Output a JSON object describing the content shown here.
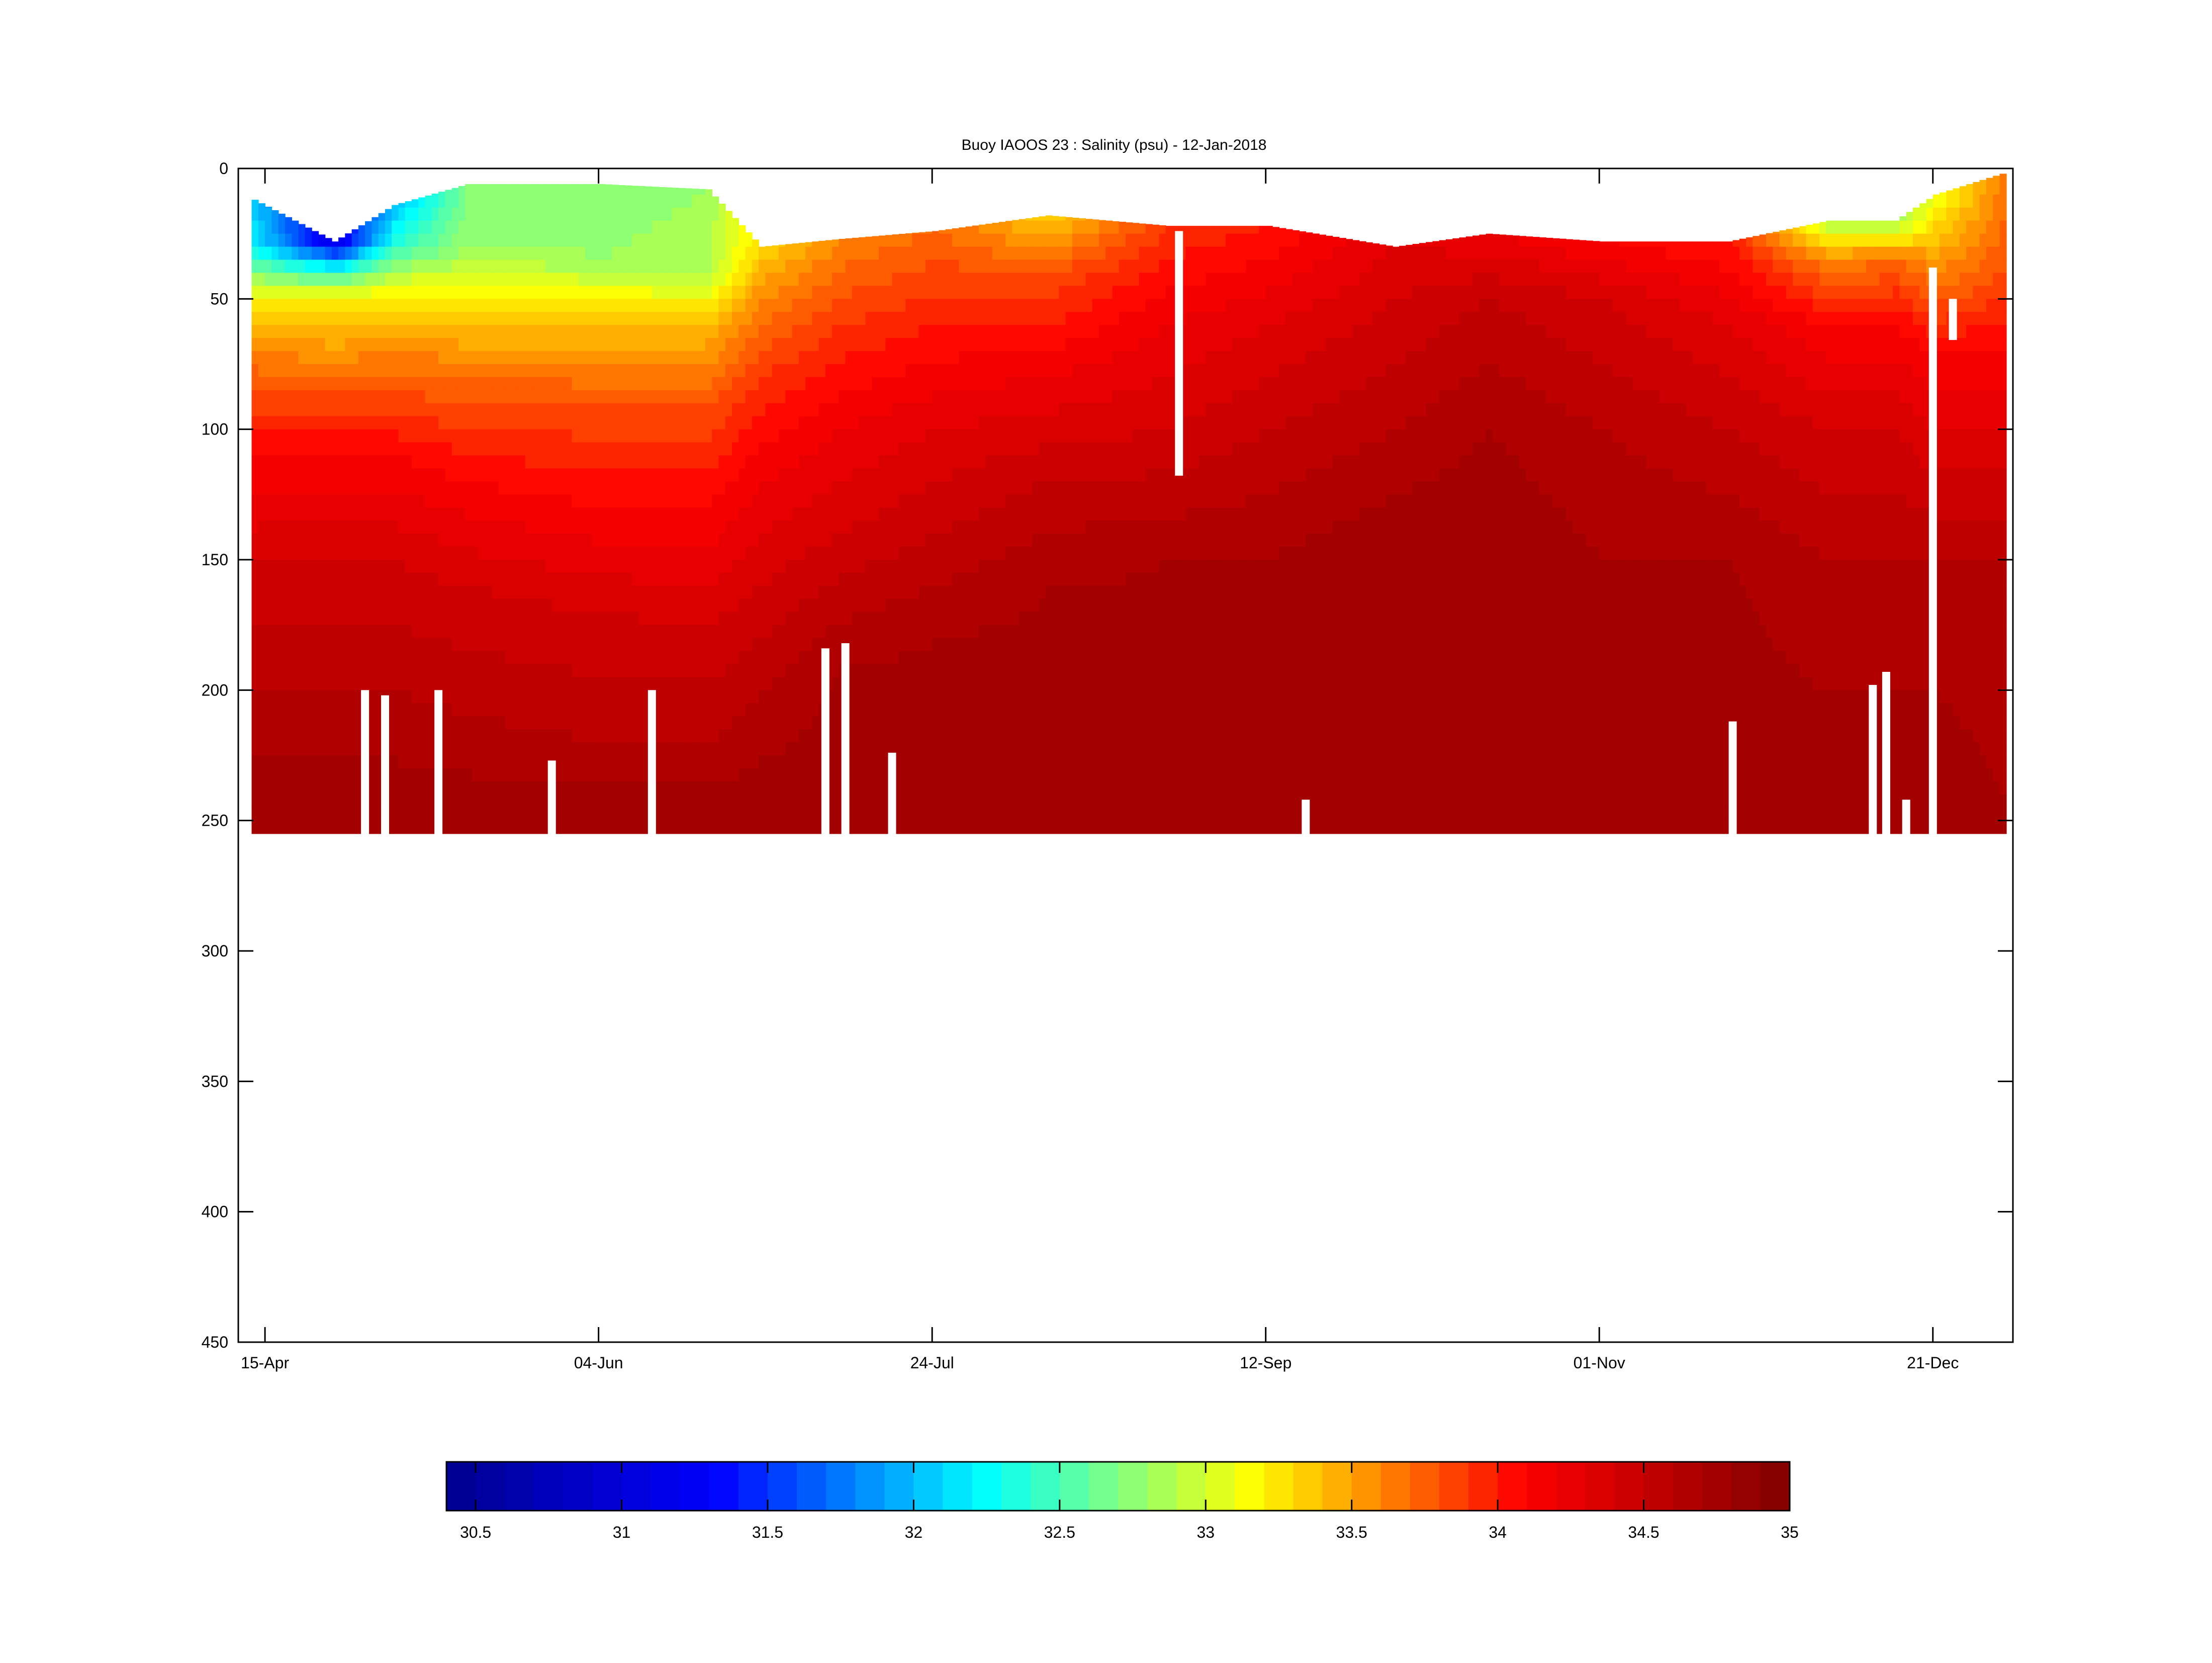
{
  "chart_data": {
    "type": "heatmap",
    "title": "Buoy IAOOS 23 : Salinity (psu) - 12-Jan-2018",
    "xlabel": "",
    "ylabel": "",
    "x_domain": [
      "2017-04-11",
      "2018-01-02"
    ],
    "x_ticks": [
      {
        "date": "2017-04-15",
        "label": "15-Apr"
      },
      {
        "date": "2017-06-04",
        "label": "04-Jun"
      },
      {
        "date": "2017-07-24",
        "label": "24-Jul"
      },
      {
        "date": "2017-09-12",
        "label": "12-Sep"
      },
      {
        "date": "2017-11-01",
        "label": "01-Nov"
      },
      {
        "date": "2017-12-21",
        "label": "21-Dec"
      }
    ],
    "ylim": [
      0,
      450
    ],
    "y_reversed": true,
    "y_ticks": [
      0,
      50,
      100,
      150,
      200,
      250,
      300,
      350,
      400,
      450
    ],
    "grid": false,
    "colorbar": {
      "orientation": "horizontal",
      "placement": "bottom",
      "range": [
        30.4,
        35
      ],
      "ticks": [
        30.5,
        31,
        31.5,
        32,
        32.5,
        33,
        33.5,
        34,
        34.5,
        35
      ],
      "colormap": "jet",
      "colormap_stops": [
        "#00008f",
        "#0000ff",
        "#00ffff",
        "#ffff00",
        "#ff0000",
        "#800000"
      ],
      "levels": 46
    },
    "profile_max_depth": 255,
    "salinity_profiles": [
      {
        "date": "2017-04-13",
        "top_depth": 12,
        "depth_salinity": [
          [
            12,
            32.0
          ],
          [
            30,
            32.2
          ],
          [
            50,
            33.2
          ],
          [
            70,
            33.6
          ],
          [
            100,
            34.0
          ],
          [
            150,
            34.4
          ],
          [
            200,
            34.6
          ],
          [
            255,
            34.8
          ]
        ]
      },
      {
        "date": "2017-04-25",
        "top_depth": 28,
        "depth_salinity": [
          [
            28,
            31.1
          ],
          [
            40,
            32.4
          ],
          [
            50,
            33.2
          ],
          [
            80,
            33.7
          ],
          [
            110,
            34.1
          ],
          [
            150,
            34.4
          ],
          [
            200,
            34.6
          ],
          [
            255,
            34.8
          ]
        ]
      },
      {
        "date": "2017-05-04",
        "top_depth": 14,
        "depth_salinity": [
          [
            14,
            32.0
          ],
          [
            30,
            32.4
          ],
          [
            45,
            33.1
          ],
          [
            70,
            33.6
          ],
          [
            110,
            34.1
          ],
          [
            150,
            34.4
          ],
          [
            200,
            34.6
          ],
          [
            255,
            34.8
          ]
        ]
      },
      {
        "date": "2017-05-15",
        "top_depth": 6,
        "depth_salinity": [
          [
            6,
            32.7
          ],
          [
            30,
            32.8
          ],
          [
            50,
            33.2
          ],
          [
            80,
            33.7
          ],
          [
            120,
            34.1
          ],
          [
            160,
            34.4
          ],
          [
            210,
            34.6
          ],
          [
            255,
            34.8
          ]
        ]
      },
      {
        "date": "2017-06-04",
        "top_depth": 6,
        "depth_salinity": [
          [
            6,
            32.7
          ],
          [
            35,
            32.8
          ],
          [
            55,
            33.3
          ],
          [
            90,
            33.8
          ],
          [
            130,
            34.1
          ],
          [
            170,
            34.4
          ],
          [
            220,
            34.6
          ],
          [
            255,
            34.8
          ]
        ]
      },
      {
        "date": "2017-06-20",
        "top_depth": 8,
        "depth_salinity": [
          [
            8,
            32.8
          ],
          [
            40,
            32.9
          ],
          [
            60,
            33.4
          ],
          [
            90,
            33.8
          ],
          [
            130,
            34.1
          ],
          [
            175,
            34.4
          ],
          [
            220,
            34.6
          ],
          [
            255,
            34.8
          ]
        ]
      },
      {
        "date": "2017-06-28",
        "top_depth": 30,
        "depth_salinity": [
          [
            30,
            33.3
          ],
          [
            50,
            33.6
          ],
          [
            80,
            33.9
          ],
          [
            120,
            34.2
          ],
          [
            160,
            34.4
          ],
          [
            200,
            34.6
          ],
          [
            255,
            34.8
          ]
        ]
      },
      {
        "date": "2017-07-10",
        "top_depth": 27,
        "depth_salinity": [
          [
            27,
            33.6
          ],
          [
            60,
            33.9
          ],
          [
            100,
            34.2
          ],
          [
            140,
            34.4
          ],
          [
            190,
            34.7
          ],
          [
            255,
            34.8
          ]
        ]
      },
      {
        "date": "2017-07-24",
        "top_depth": 24,
        "depth_salinity": [
          [
            24,
            33.7
          ],
          [
            60,
            34.0
          ],
          [
            100,
            34.3
          ],
          [
            140,
            34.5
          ],
          [
            180,
            34.7
          ],
          [
            255,
            34.8
          ]
        ]
      },
      {
        "date": "2017-08-10",
        "top_depth": 18,
        "depth_salinity": [
          [
            18,
            33.3
          ],
          [
            40,
            33.8
          ],
          [
            80,
            34.2
          ],
          [
            120,
            34.5
          ],
          [
            160,
            34.7
          ],
          [
            255,
            34.8
          ]
        ]
      },
      {
        "date": "2017-08-28",
        "top_depth": 22,
        "depth_salinity": [
          [
            22,
            33.9
          ],
          [
            60,
            34.2
          ],
          [
            100,
            34.4
          ],
          [
            150,
            34.7
          ],
          [
            255,
            34.8
          ]
        ]
      },
      {
        "date": "2017-09-12",
        "top_depth": 22,
        "depth_salinity": [
          [
            22,
            34.0
          ],
          [
            60,
            34.3
          ],
          [
            100,
            34.5
          ],
          [
            150,
            34.7
          ],
          [
            255,
            34.8
          ]
        ]
      },
      {
        "date": "2017-10-01",
        "top_depth": 30,
        "depth_salinity": [
          [
            30,
            34.3
          ],
          [
            50,
            34.4
          ],
          [
            100,
            34.6
          ],
          [
            150,
            34.8
          ],
          [
            255,
            34.8
          ]
        ]
      },
      {
        "date": "2017-10-15",
        "top_depth": 25,
        "depth_salinity": [
          [
            25,
            34.2
          ],
          [
            50,
            34.5
          ],
          [
            100,
            34.7
          ],
          [
            150,
            34.8
          ],
          [
            255,
            34.8
          ]
        ]
      },
      {
        "date": "2017-11-01",
        "top_depth": 28,
        "depth_salinity": [
          [
            28,
            34.1
          ],
          [
            50,
            34.4
          ],
          [
            100,
            34.6
          ],
          [
            150,
            34.7
          ],
          [
            255,
            34.8
          ]
        ]
      },
      {
        "date": "2017-11-20",
        "top_depth": 28,
        "depth_salinity": [
          [
            28,
            34.0
          ],
          [
            60,
            34.3
          ],
          [
            100,
            34.5
          ],
          [
            150,
            34.7
          ],
          [
            255,
            34.8
          ]
        ]
      },
      {
        "date": "2017-12-05",
        "top_depth": 20,
        "depth_salinity": [
          [
            20,
            32.8
          ],
          [
            35,
            33.6
          ],
          [
            60,
            34.1
          ],
          [
            100,
            34.4
          ],
          [
            150,
            34.6
          ],
          [
            255,
            34.8
          ]
        ]
      },
      {
        "date": "2017-12-15",
        "top_depth": 20,
        "depth_salinity": [
          [
            20,
            32.8
          ],
          [
            35,
            33.7
          ],
          [
            60,
            34.1
          ],
          [
            100,
            34.4
          ],
          [
            150,
            34.6
          ],
          [
            255,
            34.8
          ]
        ]
      },
      {
        "date": "2017-12-21",
        "top_depth": 10,
        "depth_salinity": [
          [
            10,
            33.1
          ],
          [
            40,
            33.6
          ],
          [
            70,
            34.1
          ],
          [
            100,
            34.3
          ],
          [
            150,
            34.6
          ],
          [
            255,
            34.8
          ]
        ]
      },
      {
        "date": "2017-12-31",
        "top_depth": 2,
        "depth_salinity": [
          [
            2,
            33.6
          ],
          [
            40,
            33.8
          ],
          [
            70,
            34.1
          ],
          [
            100,
            34.3
          ],
          [
            150,
            34.6
          ],
          [
            240,
            34.7
          ]
        ]
      }
    ],
    "data_gaps": [
      {
        "date": "2017-04-30",
        "from_depth": 200,
        "to_depth": 255
      },
      {
        "date": "2017-05-03",
        "from_depth": 202,
        "to_depth": 255
      },
      {
        "date": "2017-05-11",
        "from_depth": 200,
        "to_depth": 255
      },
      {
        "date": "2017-05-28",
        "from_depth": 227,
        "to_depth": 255
      },
      {
        "date": "2017-06-12",
        "from_depth": 200,
        "to_depth": 255
      },
      {
        "date": "2017-07-08",
        "from_depth": 184,
        "to_depth": 255
      },
      {
        "date": "2017-07-11",
        "from_depth": 182,
        "to_depth": 255
      },
      {
        "date": "2017-07-18",
        "from_depth": 224,
        "to_depth": 255
      },
      {
        "date": "2017-08-30",
        "from_depth": 24,
        "to_depth": 117
      },
      {
        "date": "2017-09-18",
        "from_depth": 242,
        "to_depth": 255
      },
      {
        "date": "2017-11-21",
        "from_depth": 212,
        "to_depth": 255
      },
      {
        "date": "2017-12-12",
        "from_depth": 198,
        "to_depth": 255
      },
      {
        "date": "2017-12-14",
        "from_depth": 193,
        "to_depth": 255
      },
      {
        "date": "2017-12-17",
        "from_depth": 242,
        "to_depth": 255
      },
      {
        "date": "2017-12-21",
        "from_depth": 38,
        "to_depth": 255
      },
      {
        "date": "2017-12-24",
        "from_depth": 50,
        "to_depth": 65
      }
    ]
  }
}
